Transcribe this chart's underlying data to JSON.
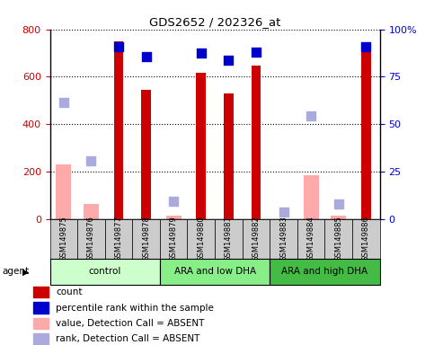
{
  "title": "GDS2652 / 202326_at",
  "samples": [
    "GSM149875",
    "GSM149876",
    "GSM149877",
    "GSM149878",
    "GSM149879",
    "GSM149880",
    "GSM149881",
    "GSM149882",
    "GSM149883",
    "GSM149884",
    "GSM149885",
    "GSM149886"
  ],
  "count_values": [
    null,
    null,
    750,
    545,
    null,
    615,
    530,
    648,
    null,
    null,
    null,
    730
  ],
  "count_color": "#cc0000",
  "absent_value_values": [
    230,
    65,
    null,
    null,
    15,
    null,
    null,
    null,
    null,
    185,
    15,
    null
  ],
  "absent_value_color": "#ffaaaa",
  "percentile_pct": [
    null,
    null,
    90.6,
    85.6,
    null,
    87.5,
    83.75,
    88.1,
    null,
    null,
    null,
    91.0
  ],
  "percentile_color": "#0000cc",
  "absent_rank_pct": [
    61.25,
    30.6,
    null,
    null,
    9.4,
    null,
    null,
    null,
    3.75,
    54.4,
    8.1,
    null
  ],
  "absent_rank_color": "#aaaadd",
  "ylim_left": [
    0,
    800
  ],
  "ylim_right": [
    0,
    100
  ],
  "yticks_left": [
    0,
    200,
    400,
    600,
    800
  ],
  "ytick_labels_left": [
    "0",
    "200",
    "400",
    "600",
    "800"
  ],
  "yticks_right": [
    0,
    25,
    50,
    75,
    100
  ],
  "ytick_labels_right": [
    "0",
    "25",
    "50",
    "75",
    "100%"
  ],
  "groups": [
    {
      "label": "control",
      "start": 0,
      "end": 3,
      "color": "#ccffcc"
    },
    {
      "label": "ARA and low DHA",
      "start": 4,
      "end": 7,
      "color": "#88ee88"
    },
    {
      "label": "ARA and high DHA",
      "start": 8,
      "end": 11,
      "color": "#44bb44"
    }
  ],
  "count_bar_width": 0.35,
  "absent_bar_width": 0.55,
  "dot_size": 45,
  "legend_items": [
    {
      "label": "count",
      "color": "#cc0000"
    },
    {
      "label": "percentile rank within the sample",
      "color": "#0000cc"
    },
    {
      "label": "value, Detection Call = ABSENT",
      "color": "#ffaaaa"
    },
    {
      "label": "rank, Detection Call = ABSENT",
      "color": "#aaaadd"
    }
  ],
  "left_color": "#cc0000",
  "right_color": "#0000cc"
}
